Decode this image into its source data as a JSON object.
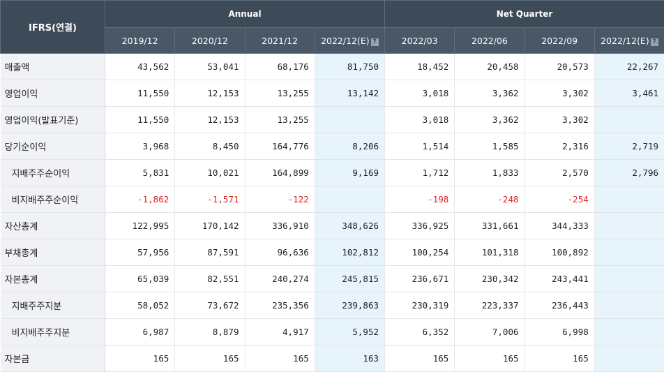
{
  "header": {
    "row_label": "IFRS(연결)",
    "groups": [
      {
        "label": "Annual"
      },
      {
        "label": "Net Quarter"
      }
    ],
    "periods": [
      "2019/12",
      "2020/12",
      "2021/12",
      "2022/12(E)",
      "2022/03",
      "2022/06",
      "2022/09",
      "2022/12(E)"
    ],
    "estimate_mark": "?"
  },
  "colors": {
    "header_bg": "#3d4a58",
    "estimate_bg": "#e8f4fb",
    "negative": "#e02020"
  },
  "rows": [
    {
      "label": "매출액",
      "sub": false,
      "values": [
        "43,562",
        "53,041",
        "68,176",
        "81,750",
        "18,452",
        "20,458",
        "20,573",
        "22,267"
      ]
    },
    {
      "label": "영업이익",
      "sub": false,
      "values": [
        "11,550",
        "12,153",
        "13,255",
        "13,142",
        "3,018",
        "3,362",
        "3,302",
        "3,461"
      ]
    },
    {
      "label": "영업이익(발표기준)",
      "sub": false,
      "values": [
        "11,550",
        "12,153",
        "13,255",
        "",
        "3,018",
        "3,362",
        "3,302",
        ""
      ]
    },
    {
      "label": "당기순이익",
      "sub": false,
      "values": [
        "3,968",
        "8,450",
        "164,776",
        "8,206",
        "1,514",
        "1,585",
        "2,316",
        "2,719"
      ]
    },
    {
      "label": "지배주주순이익",
      "sub": true,
      "values": [
        "5,831",
        "10,021",
        "164,899",
        "9,169",
        "1,712",
        "1,833",
        "2,570",
        "2,796"
      ]
    },
    {
      "label": "비지배주주순이익",
      "sub": true,
      "values": [
        "-1,862",
        "-1,571",
        "-122",
        "",
        "-198",
        "-248",
        "-254",
        ""
      ]
    },
    {
      "label": "자산총계",
      "sub": false,
      "values": [
        "122,995",
        "170,142",
        "336,910",
        "348,626",
        "336,925",
        "331,661",
        "344,333",
        ""
      ]
    },
    {
      "label": "부채총계",
      "sub": false,
      "values": [
        "57,956",
        "87,591",
        "96,636",
        "102,812",
        "100,254",
        "101,318",
        "100,892",
        ""
      ]
    },
    {
      "label": "자본총계",
      "sub": false,
      "values": [
        "65,039",
        "82,551",
        "240,274",
        "245,815",
        "236,671",
        "230,342",
        "243,441",
        ""
      ]
    },
    {
      "label": "지배주주지분",
      "sub": true,
      "values": [
        "58,052",
        "73,672",
        "235,356",
        "239,863",
        "230,319",
        "223,337",
        "236,443",
        ""
      ]
    },
    {
      "label": "비지배주주지분",
      "sub": true,
      "values": [
        "6,987",
        "8,879",
        "4,917",
        "5,952",
        "6,352",
        "7,006",
        "6,998",
        ""
      ]
    },
    {
      "label": "자본금",
      "sub": false,
      "values": [
        "165",
        "165",
        "165",
        "163",
        "165",
        "165",
        "165",
        ""
      ]
    }
  ]
}
